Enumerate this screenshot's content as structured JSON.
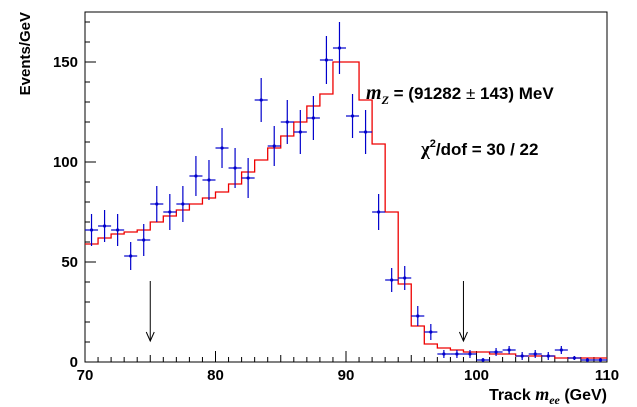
{
  "chart_data": {
    "type": "scatter",
    "xlabel_prefix": "Track ",
    "xlabel_var": "m",
    "xlabel_sub": "ee",
    "xlabel_unit": " (GeV)",
    "ylabel": "Events/GeV",
    "xlim": [
      70,
      110
    ],
    "ylim": [
      0,
      175
    ],
    "xticks": [
      70,
      80,
      90,
      100,
      110
    ],
    "yticks": [
      0,
      50,
      100,
      150
    ],
    "annotations": {
      "mass_var": "m",
      "mass_sub": "Z",
      "mass_text": " = (91282",
      "mass_pm": " ± ",
      "mass_err": "143) MeV",
      "chi2_chi": "χ",
      "chi2_sup": "2",
      "chi2_rest": "/dof = 30 / 22"
    },
    "arrows_x": [
      75,
      99
    ],
    "bin_width": 1,
    "series": [
      {
        "kind": "data",
        "color": "#0000cc",
        "x": [
          70.5,
          71.5,
          72.5,
          73.5,
          74.5,
          75.5,
          76.5,
          77.5,
          78.5,
          79.5,
          80.5,
          81.5,
          82.5,
          83.5,
          84.5,
          85.5,
          86.5,
          87.5,
          88.5,
          89.5,
          90.5,
          91.5,
          92.5,
          93.5,
          94.5,
          95.5,
          96.5,
          97.5,
          98.5,
          99.5,
          100.5,
          101.5,
          102.5,
          103.5,
          104.5,
          105.5,
          106.5,
          107.5,
          108.5,
          109.5
        ],
        "y": [
          66,
          68,
          66,
          53,
          61,
          79,
          75,
          79,
          93,
          91,
          107,
          97,
          92,
          131,
          108,
          120,
          115,
          122,
          151,
          157,
          123,
          115,
          75,
          41,
          42,
          23,
          15,
          4,
          4,
          4,
          1,
          5,
          6,
          3,
          4,
          3,
          6,
          2,
          1,
          1
        ],
        "err": [
          8,
          8,
          8,
          7,
          8,
          9,
          9,
          9,
          10,
          10,
          10,
          10,
          10,
          11,
          10,
          11,
          11,
          11,
          12,
          13,
          11,
          11,
          9,
          6,
          6,
          5,
          4,
          2,
          2,
          2,
          1,
          2,
          2,
          2,
          2,
          2,
          2,
          1,
          1,
          1
        ]
      },
      {
        "kind": "fit",
        "color": "#ee0000",
        "edges": [
          70,
          71,
          72,
          73,
          74,
          75,
          76,
          77,
          78,
          79,
          80,
          81,
          82,
          83,
          84,
          85,
          86,
          87,
          88,
          89,
          90,
          91,
          92,
          93,
          94,
          95,
          96,
          97,
          98,
          99,
          100,
          101,
          102,
          103,
          104,
          105,
          106,
          107,
          108,
          109,
          110
        ],
        "values": [
          59,
          62,
          64,
          65,
          66,
          70,
          73,
          76,
          79,
          82,
          85,
          89,
          95,
          101,
          107,
          113,
          120,
          128,
          134,
          150,
          150,
          131,
          109,
          75,
          39,
          18,
          9,
          7,
          6,
          5,
          5,
          4,
          4,
          3,
          3,
          3,
          2,
          2,
          2,
          2
        ]
      }
    ]
  }
}
